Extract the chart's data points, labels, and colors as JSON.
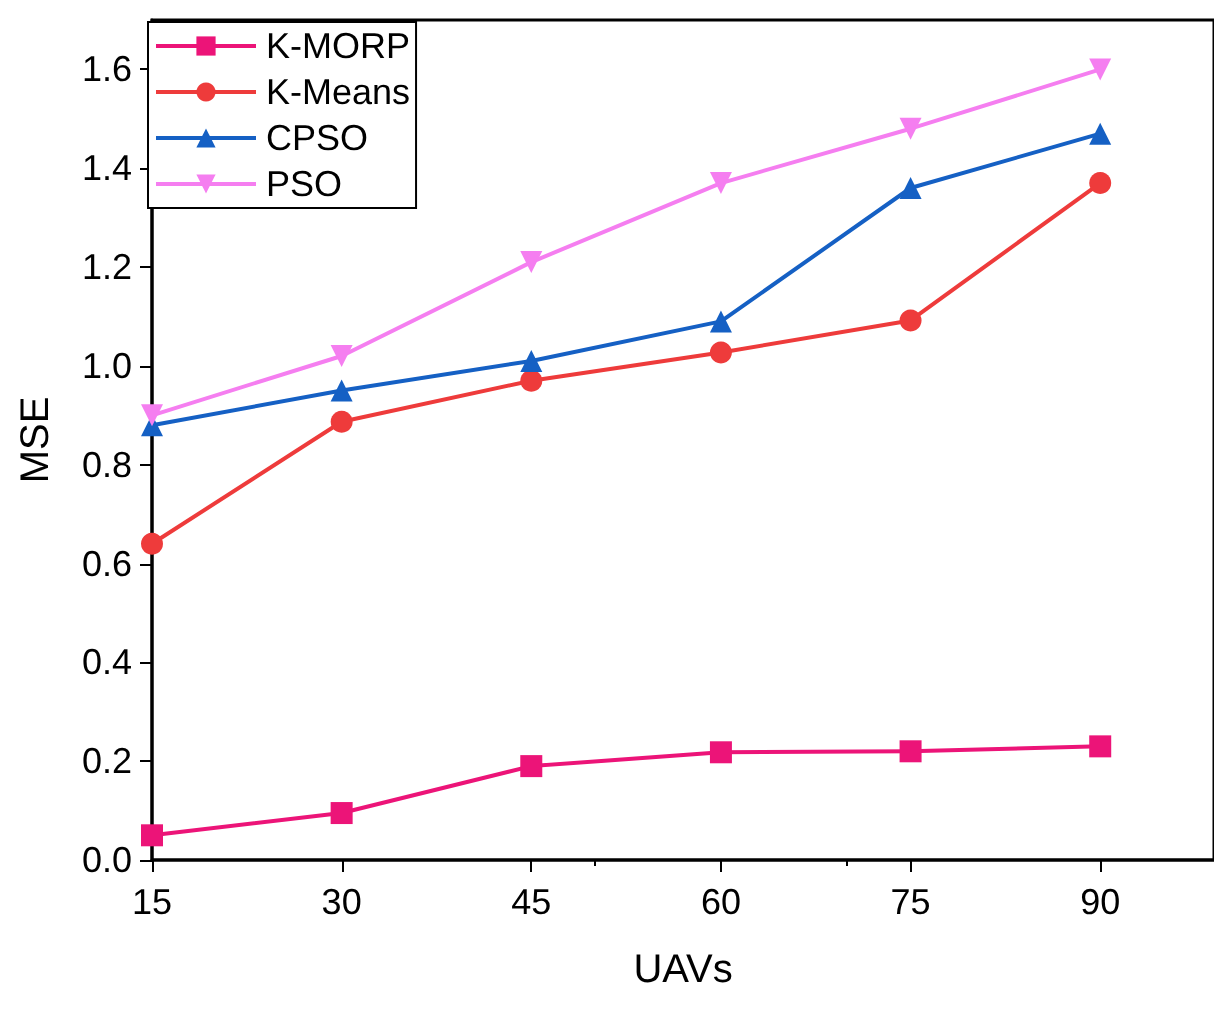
{
  "chart_data": {
    "type": "line",
    "xlabel": "UAVs",
    "ylabel": "MSE",
    "x": [
      15,
      30,
      45,
      60,
      75,
      90
    ],
    "xlim": [
      15,
      99
    ],
    "xticks": [
      15,
      30,
      45,
      60,
      75,
      90
    ],
    "ylim": [
      0,
      1.7
    ],
    "yticks": [
      {
        "value": 0,
        "label": "0.0"
      },
      0.2,
      0.4,
      0.6,
      0.8,
      {
        "value": 1,
        "label": "1.0"
      },
      1.2,
      1.4,
      1.6
    ],
    "grid": false,
    "legend": "top left",
    "series": [
      {
        "name": "K-MORP",
        "color": "#ec1478",
        "marker": "square",
        "values": [
          0.05,
          0.095,
          0.19,
          0.218,
          0.22,
          0.23
        ]
      },
      {
        "name": "K-Means",
        "color": "#ee3b3b",
        "marker": "circle",
        "values": [
          0.64,
          0.887,
          0.97,
          1.027,
          1.092,
          1.37
        ]
      },
      {
        "name": "CPSO",
        "color": "#1560c4",
        "marker": "triangle",
        "values": [
          0.88,
          0.95,
          1.01,
          1.09,
          1.36,
          1.47
        ]
      },
      {
        "name": "PSO",
        "color": "#f57ef0",
        "marker": "triangle-down",
        "values": [
          0.9,
          1.02,
          1.21,
          1.37,
          1.48,
          1.6
        ]
      }
    ]
  }
}
